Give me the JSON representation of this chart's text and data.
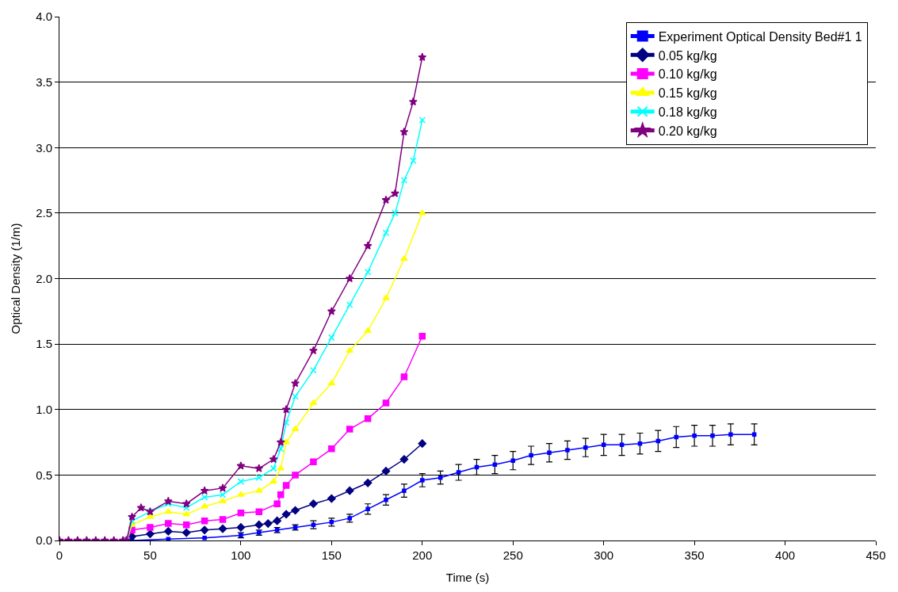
{
  "chart_data": {
    "type": "line",
    "xlabel": "Time (s)",
    "ylabel": "Optical Density (1/m)",
    "xlim": [
      0,
      450
    ],
    "xticks": [
      0,
      50,
      100,
      150,
      200,
      250,
      300,
      350,
      400,
      450
    ],
    "ylim": [
      0,
      4
    ],
    "yticks": [
      {
        "value": 0,
        "label": "0.0"
      },
      0.5,
      {
        "value": 1,
        "label": "1.0"
      },
      1.5,
      {
        "value": 2,
        "label": "2.0"
      },
      2.5,
      {
        "value": 3,
        "label": "3.0"
      },
      3.5,
      {
        "value": 4,
        "label": "4.0"
      }
    ],
    "grid": "y",
    "legend": "top right",
    "line_style": "solid",
    "series": [
      {
        "name": "Experiment Optical Density Bed#1 1",
        "color": "#0000ff",
        "marker": "square",
        "x": [
          40,
          60,
          80,
          100,
          110,
          120,
          130,
          140,
          150,
          160,
          170,
          180,
          190,
          200,
          210,
          220,
          230,
          240,
          250,
          260,
          270,
          280,
          290,
          300,
          310,
          320,
          330,
          340,
          350,
          360,
          370,
          383
        ],
        "values": [
          0.0,
          0.01,
          0.02,
          0.04,
          0.06,
          0.08,
          0.1,
          0.12,
          0.14,
          0.17,
          0.24,
          0.31,
          0.38,
          0.46,
          0.48,
          0.52,
          0.56,
          0.58,
          0.61,
          0.65,
          0.67,
          0.69,
          0.71,
          0.73,
          0.73,
          0.74,
          0.76,
          0.79,
          0.8,
          0.8,
          0.81,
          0.81
        ],
        "errors": [
          null,
          null,
          null,
          0.02,
          0.02,
          0.02,
          0.02,
          0.03,
          0.03,
          0.03,
          0.04,
          0.04,
          0.05,
          0.05,
          0.05,
          0.06,
          0.06,
          0.07,
          0.07,
          0.07,
          0.07,
          0.07,
          0.07,
          0.08,
          0.08,
          0.08,
          0.08,
          0.08,
          0.08,
          0.08,
          0.08,
          0.08
        ]
      },
      {
        "name": "0.05 kg/kg",
        "color": "#000080",
        "marker": "diamond",
        "x": [
          37,
          40,
          50,
          60,
          70,
          80,
          90,
          100,
          110,
          115,
          120,
          125,
          130,
          140,
          150,
          160,
          170,
          180,
          190,
          200
        ],
        "values": [
          0,
          0.03,
          0.05,
          0.07,
          0.06,
          0.08,
          0.09,
          0.1,
          0.12,
          0.13,
          0.15,
          0.2,
          0.23,
          0.28,
          0.32,
          0.38,
          0.44,
          0.53,
          0.62,
          0.74
        ]
      },
      {
        "name": "0.10 kg/kg",
        "color": "#ff00ff",
        "marker": "square",
        "x": [
          37,
          40,
          50,
          60,
          70,
          80,
          90,
          100,
          110,
          120,
          122,
          125,
          130,
          140,
          150,
          160,
          170,
          180,
          190,
          200
        ],
        "values": [
          0,
          0.08,
          0.1,
          0.13,
          0.12,
          0.15,
          0.16,
          0.21,
          0.22,
          0.28,
          0.35,
          0.42,
          0.5,
          0.6,
          0.7,
          0.85,
          0.93,
          1.05,
          1.25,
          1.56
        ]
      },
      {
        "name": "0.15 kg/kg",
        "color": "#ffff00",
        "marker": "triangle",
        "x": [
          37,
          40,
          50,
          60,
          70,
          80,
          90,
          100,
          110,
          118,
          122,
          125,
          130,
          140,
          150,
          160,
          170,
          180,
          190,
          200
        ],
        "values": [
          0,
          0.12,
          0.18,
          0.22,
          0.2,
          0.26,
          0.3,
          0.35,
          0.38,
          0.45,
          0.55,
          0.75,
          0.85,
          1.05,
          1.2,
          1.45,
          1.6,
          1.85,
          2.15,
          2.5
        ]
      },
      {
        "name": "0.18 kg/kg",
        "color": "#00ffff",
        "marker": "cross",
        "x": [
          37,
          40,
          50,
          60,
          70,
          80,
          90,
          100,
          110,
          118,
          122,
          125,
          130,
          140,
          150,
          160,
          170,
          180,
          185,
          190,
          195,
          200
        ],
        "values": [
          0,
          0.15,
          0.22,
          0.28,
          0.25,
          0.33,
          0.35,
          0.45,
          0.48,
          0.55,
          0.7,
          0.9,
          1.1,
          1.3,
          1.55,
          1.8,
          2.05,
          2.35,
          2.5,
          2.75,
          2.9,
          3.21
        ]
      },
      {
        "name": "0.20 kg/kg",
        "color": "#800080",
        "marker": "star",
        "x": [
          0,
          5,
          10,
          15,
          20,
          25,
          30,
          35,
          37,
          40,
          45,
          50,
          60,
          70,
          80,
          90,
          100,
          110,
          118,
          122,
          125,
          130,
          140,
          150,
          160,
          170,
          180,
          185,
          190,
          195,
          200
        ],
        "values": [
          0,
          0,
          0,
          0,
          0,
          0,
          0,
          0,
          0,
          0.18,
          0.25,
          0.22,
          0.3,
          0.28,
          0.38,
          0.4,
          0.57,
          0.55,
          0.62,
          0.75,
          1.0,
          1.2,
          1.45,
          1.75,
          2.0,
          2.25,
          2.6,
          2.65,
          3.12,
          3.35,
          3.69
        ]
      }
    ]
  }
}
